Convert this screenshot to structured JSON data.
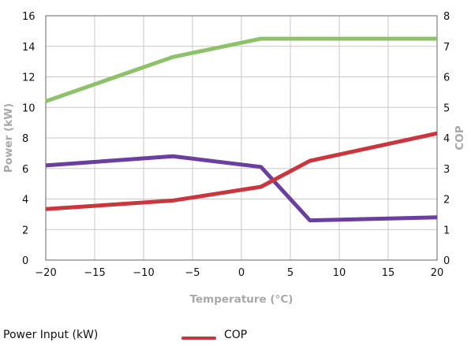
{
  "chart_data": {
    "type": "line",
    "xlabel": "Temperature (°C)",
    "ylabel": "Power (kW)",
    "y2label": "COP",
    "xlim": [
      -20,
      20
    ],
    "ylim": [
      0,
      16
    ],
    "y2lim": [
      0,
      8
    ],
    "x_ticks": [
      -20,
      -15,
      -10,
      -5,
      0,
      5,
      10,
      15,
      20
    ],
    "y_ticks": [
      0,
      2,
      4,
      6,
      8,
      10,
      12,
      14,
      16
    ],
    "y2_ticks": [
      0,
      1,
      2,
      3,
      4,
      5,
      6,
      7,
      8
    ],
    "grid": true,
    "legend_position": "bottom",
    "series": [
      {
        "key": "green",
        "color": "#8dc26a",
        "axis": "left",
        "x": [
          -20,
          -7,
          2,
          7,
          20
        ],
        "y": [
          10.4,
          13.3,
          14.5,
          14.5,
          14.5
        ]
      },
      {
        "key": "purple",
        "name": "Power Input (kW)",
        "color": "#6a3fa0",
        "axis": "left",
        "x": [
          -20,
          -7,
          2,
          7,
          20
        ],
        "y": [
          6.2,
          6.8,
          6.1,
          2.6,
          2.8
        ]
      },
      {
        "key": "red",
        "name": "COP",
        "color": "#c9363e",
        "axis": "right",
        "x": [
          -20,
          -7,
          2,
          7,
          20
        ],
        "y": [
          1.67,
          1.95,
          2.4,
          3.25,
          4.15
        ]
      }
    ]
  },
  "legend": {
    "items": [
      {
        "label": "Power Input (kW)",
        "color": "#6a3fa0"
      },
      {
        "label": "COP",
        "color": "#c9363e"
      }
    ]
  }
}
